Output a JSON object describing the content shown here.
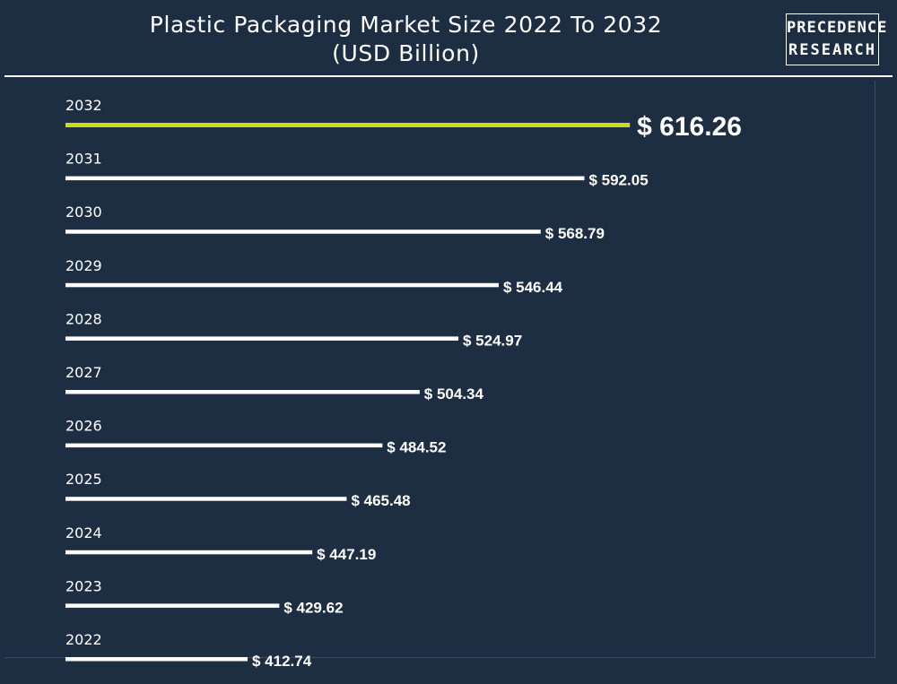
{
  "header": {
    "title_line1": "Plastic Packaging Market Size 2022 To 2032",
    "title_line2": "(USD Billion)",
    "logo_line1": "PRECEDENCE",
    "logo_line2": "RESEARCH"
  },
  "colors": {
    "background": "#1d2e43",
    "bar": "#ffffff",
    "highlight": "#c8dc1e",
    "text": "#ffffff"
  },
  "chart_data": {
    "type": "bar",
    "orientation": "horizontal",
    "title": "Plastic Packaging Market Size 2022 To 2032",
    "subtitle": "(USD Billion)",
    "categories": [
      "2032",
      "2031",
      "2030",
      "2029",
      "2028",
      "2027",
      "2026",
      "2025",
      "2024",
      "2023",
      "2022"
    ],
    "values": [
      616.26,
      592.05,
      568.79,
      546.44,
      524.97,
      504.34,
      484.52,
      465.48,
      447.19,
      429.62,
      412.74
    ],
    "labels": [
      "$ 616.26",
      "$ 592.05",
      "$ 568.79",
      "$ 546.44",
      "$ 524.97",
      "$ 504.34",
      "$ 484.52",
      "$ 465.48",
      "$ 447.19",
      "$ 429.62",
      "$ 412.74"
    ],
    "highlight_category": "2032",
    "grid": false,
    "legend": "none"
  }
}
